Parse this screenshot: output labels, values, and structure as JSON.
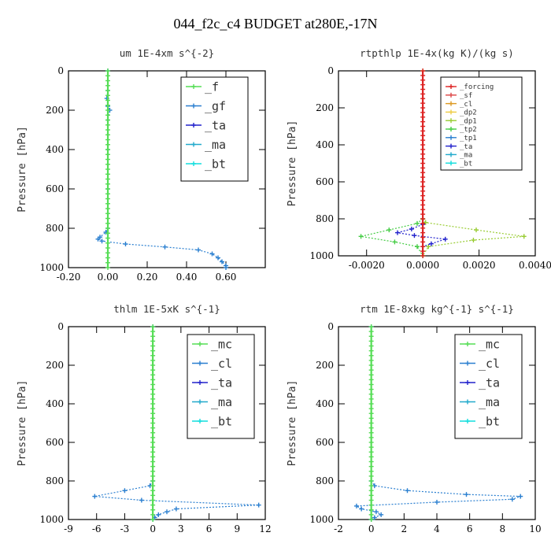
{
  "title": "044_f2c_c4  BUDGET at280E,-17N",
  "colors": {
    "f": "#55dd55",
    "gf": "#2a7fd0",
    "ta": "#2222cc",
    "ma": "#22aacc",
    "bt": "#11dddd",
    "mc": "#55dd55",
    "cl": "#2a7fd0",
    "forcing": "#dd2222",
    "sf": "#dd4444",
    "cl_small": "#dd9922",
    "dp2": "#eecc44",
    "dp1": "#99cc33",
    "tp2": "#44cc44",
    "tp1": "#2a7fd0",
    "tp_ma": "#22aacc",
    "bt_small": "#11dddd"
  },
  "chart_data": [
    {
      "type": "line",
      "title": "um   1E-4xm s^{-2}",
      "ylabel": "Pressure [hPa]",
      "xlim": [
        -0.2,
        0.8
      ],
      "ylim": [
        1000,
        0
      ],
      "xticks": [
        "-0.20",
        "0.00",
        "0.20",
        "0.40",
        "0.60"
      ],
      "yticks": [
        "0",
        "200",
        "400",
        "600",
        "800",
        "1000"
      ],
      "legend": [
        "_f",
        "_gf",
        "_ta",
        "_ma",
        "_bt"
      ],
      "legend_position": "top-right",
      "series": [
        {
          "name": "_gf",
          "color": "gf",
          "points": [
            [
              0.0,
              0
            ],
            [
              0.0,
              100
            ],
            [
              -0.005,
              140
            ],
            [
              0.0,
              180
            ],
            [
              0.01,
              200
            ],
            [
              0.0,
              250
            ],
            [
              0.0,
              400
            ],
            [
              0.0,
              600
            ],
            [
              0.0,
              800
            ],
            [
              -0.01,
              820
            ],
            [
              -0.04,
              845
            ],
            [
              -0.05,
              855
            ],
            [
              -0.03,
              865
            ],
            [
              0.09,
              880
            ],
            [
              0.29,
              895
            ],
            [
              0.46,
              910
            ],
            [
              0.53,
              930
            ],
            [
              0.56,
              950
            ],
            [
              0.58,
              970
            ],
            [
              0.6,
              990
            ],
            [
              0.6,
              1000
            ]
          ]
        },
        {
          "name": "_f",
          "color": "f",
          "points": [
            [
              0.0,
              0
            ],
            [
              0.0,
              1000
            ]
          ]
        }
      ]
    },
    {
      "type": "line",
      "title": "rtpthlp   1E-4x(kg K)/(kg s)",
      "ylabel": "Pressure [hPa]",
      "xlim": [
        -0.003,
        0.004
      ],
      "ylim": [
        1000,
        0
      ],
      "xticks": [
        "-0.0020",
        "0.0000",
        "0.0020",
        "0.0040"
      ],
      "yticks": [
        "0",
        "200",
        "400",
        "600",
        "800",
        "1000"
      ],
      "legend": [
        "_forcing",
        "_sf",
        "_cl",
        "_dp2",
        "_dp1",
        "_tp2",
        "_tp1",
        "_ta",
        "_ma",
        "_bt"
      ],
      "legend_position": "top-right",
      "series": [
        {
          "name": "_dp1",
          "color": "dp1",
          "points": [
            [
              0.0,
              0
            ],
            [
              0.0,
              800
            ],
            [
              0.0001,
              820
            ],
            [
              0.0019,
              860
            ],
            [
              0.0036,
              895
            ],
            [
              0.0018,
              915
            ],
            [
              0.0002,
              950
            ],
            [
              0.0,
              1000
            ]
          ]
        },
        {
          "name": "_tp2",
          "color": "tp2",
          "points": [
            [
              0.0,
              800
            ],
            [
              -0.0002,
              825
            ],
            [
              -0.0012,
              860
            ],
            [
              -0.0022,
              895
            ],
            [
              -0.001,
              925
            ],
            [
              -0.0002,
              950
            ],
            [
              0.0,
              1000
            ]
          ]
        },
        {
          "name": "_ta",
          "color": "ta",
          "points": [
            [
              0.0,
              830
            ],
            [
              -0.0004,
              855
            ],
            [
              -0.0009,
              875
            ],
            [
              -0.0003,
              890
            ],
            [
              0.0008,
              910
            ],
            [
              0.0003,
              935
            ],
            [
              0.0,
              950
            ]
          ]
        },
        {
          "name": "_forcing",
          "color": "forcing",
          "points": [
            [
              0.0,
              0
            ],
            [
              0.0,
              1000
            ]
          ]
        }
      ]
    },
    {
      "type": "line",
      "title": "thlm   1E-5xK s^{-1}",
      "ylabel": "Pressure [hPa]",
      "xlim": [
        -9,
        12
      ],
      "ylim": [
        1000,
        0
      ],
      "xticks": [
        "-9",
        "-6",
        "-3",
        "0",
        "3",
        "6",
        "9",
        "12"
      ],
      "yticks": [
        "0",
        "200",
        "400",
        "600",
        "800",
        "1000"
      ],
      "legend": [
        "_mc",
        "_cl",
        "_ta",
        "_ma",
        "_bt"
      ],
      "legend_position": "top-right",
      "series": [
        {
          "name": "_cl",
          "color": "cl",
          "points": [
            [
              0.0,
              0
            ],
            [
              0.0,
              800
            ],
            [
              -0.3,
              825
            ],
            [
              -3.0,
              850
            ],
            [
              -6.2,
              880
            ],
            [
              -1.2,
              900
            ],
            [
              11.3,
              925
            ],
            [
              2.5,
              945
            ],
            [
              1.5,
              960
            ],
            [
              0.6,
              975
            ],
            [
              0.2,
              990
            ],
            [
              0.0,
              1000
            ]
          ]
        },
        {
          "name": "_mc",
          "color": "mc",
          "points": [
            [
              0.0,
              0
            ],
            [
              0.0,
              1000
            ]
          ]
        }
      ]
    },
    {
      "type": "line",
      "title": "rtm   1E-8xkg kg^{-1} s^{-1}",
      "ylabel": "Pressure [hPa]",
      "xlim": [
        -2,
        10
      ],
      "ylim": [
        1000,
        0
      ],
      "xticks": [
        "-2",
        "0",
        "2",
        "4",
        "6",
        "8",
        "10"
      ],
      "yticks": [
        "0",
        "200",
        "400",
        "600",
        "800",
        "1000"
      ],
      "legend": [
        "_mc",
        "_cl",
        "_ta",
        "_ma",
        "_bt"
      ],
      "legend_position": "top-right",
      "series": [
        {
          "name": "_cl",
          "color": "cl",
          "points": [
            [
              0.0,
              0
            ],
            [
              0.0,
              800
            ],
            [
              0.2,
              825
            ],
            [
              2.2,
              850
            ],
            [
              5.8,
              870
            ],
            [
              9.1,
              880
            ],
            [
              8.6,
              895
            ],
            [
              4.0,
              910
            ],
            [
              -0.9,
              930
            ],
            [
              -0.6,
              945
            ],
            [
              0.3,
              960
            ],
            [
              0.6,
              975
            ],
            [
              0.2,
              990
            ],
            [
              0.0,
              1000
            ]
          ]
        },
        {
          "name": "_mc",
          "color": "mc",
          "points": [
            [
              0.0,
              0
            ],
            [
              0.0,
              1000
            ]
          ]
        }
      ]
    }
  ]
}
